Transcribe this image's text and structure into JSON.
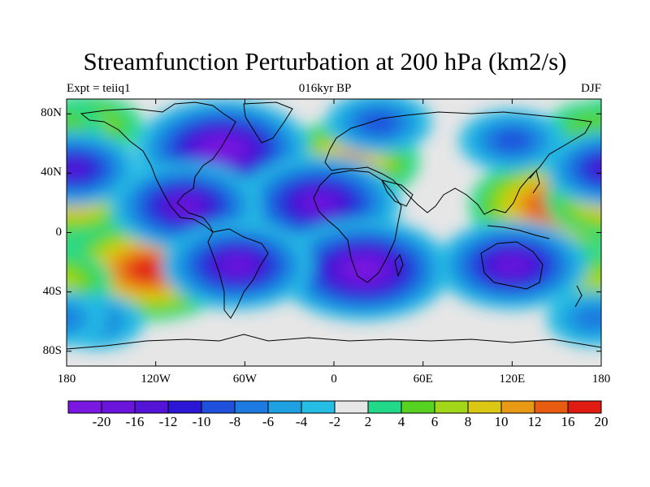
{
  "title": "Streamfunction Perturbation at 200 hPa (km2/s)",
  "left_label": "Expt = teiiq1",
  "center_label": "016kyr BP",
  "right_label": "DJF",
  "lat_ticks": [
    "80N",
    "40N",
    "0",
    "40S",
    "80S"
  ],
  "lon_ticks": [
    "180",
    "120W",
    "60W",
    "0",
    "60E",
    "120E",
    "180"
  ],
  "colorbar": {
    "labels": [
      "-20",
      "-16",
      "-12",
      "-10",
      "-8",
      "-6",
      "-4",
      "-2",
      "2",
      "4",
      "6",
      "8",
      "10",
      "12",
      "16",
      "20"
    ],
    "colors": [
      "#7a17e0",
      "#6a14dc",
      "#5414d8",
      "#2a16d4",
      "#1f50dc",
      "#1c7ae0",
      "#1fa0e0",
      "#26bde4",
      "#e6e6e6",
      "#22d98a",
      "#56d321",
      "#a2d619",
      "#dcc814",
      "#e89a14",
      "#e85c12",
      "#e01c12"
    ]
  },
  "chart_data": {
    "type": "heatmap",
    "title": "Streamfunction Perturbation at 200 hPa (km2/s)",
    "xlabel": "",
    "ylabel": "",
    "x_ticks": [
      "180",
      "120W",
      "60W",
      "0",
      "60E",
      "120E",
      "180"
    ],
    "y_ticks": [
      "80N",
      "40N",
      "0",
      "40S",
      "80S"
    ],
    "xlim": [
      -180,
      180
    ],
    "ylim": [
      -90,
      90
    ],
    "contour_levels": [
      -20,
      -16,
      -12,
      -10,
      -8,
      -6,
      -4,
      -2,
      2,
      4,
      6,
      8,
      10,
      12,
      16,
      20
    ],
    "features": [
      {
        "lon": 150,
        "lat": 18,
        "value": 20
      },
      {
        "lon": -125,
        "lat": -25,
        "value": 20
      },
      {
        "lon": 10,
        "lat": 48,
        "value": 14
      },
      {
        "lon": -60,
        "lat": 32,
        "value": 14
      },
      {
        "lon": -175,
        "lat": 22,
        "value": 12
      },
      {
        "lon": -25,
        "lat": -20,
        "value": 8
      },
      {
        "lon": 175,
        "lat": -33,
        "value": 8
      },
      {
        "lon": -165,
        "lat": 72,
        "value": 8
      },
      {
        "lon": 175,
        "lat": 70,
        "value": 6
      },
      {
        "lon": -75,
        "lat": 56,
        "value": -20
      },
      {
        "lon": -10,
        "lat": 20,
        "value": -18
      },
      {
        "lon": 20,
        "lat": -25,
        "value": -20
      },
      {
        "lon": -100,
        "lat": 18,
        "value": -16
      },
      {
        "lon": -65,
        "lat": -22,
        "value": -16
      },
      {
        "lon": 120,
        "lat": -22,
        "value": -16
      },
      {
        "lon": -175,
        "lat": 43,
        "value": -12
      },
      {
        "lon": 120,
        "lat": 62,
        "value": -8
      },
      {
        "lon": 30,
        "lat": 74,
        "value": -8
      },
      {
        "lon": -160,
        "lat": -60,
        "value": -6
      },
      {
        "lon": 175,
        "lat": -58,
        "value": -6
      }
    ]
  }
}
